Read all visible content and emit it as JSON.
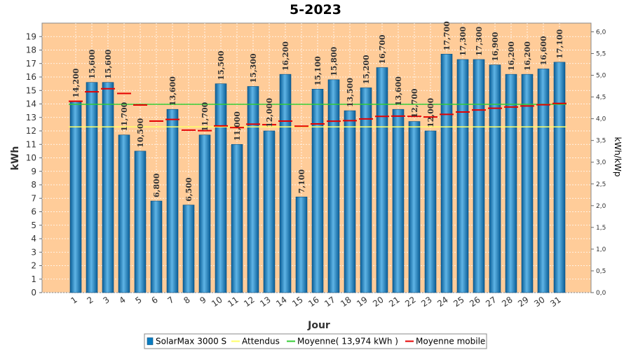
{
  "chart_data": {
    "type": "bar",
    "title": "5-2023",
    "xlabel": "Jour",
    "ylabel": "kWh",
    "y2label": "kWh/kWp",
    "ylim": [
      0,
      20
    ],
    "yticks": [
      0,
      1,
      2,
      3,
      4,
      5,
      6,
      7,
      8,
      9,
      10,
      11,
      12,
      13,
      14,
      15,
      16,
      17,
      18,
      19
    ],
    "y2lim": [
      0,
      6.2
    ],
    "y2ticks": [
      "0,0",
      "0,5",
      "1,0",
      "1,5",
      "2,0",
      "2,5",
      "3,0",
      "3,5",
      "4,0",
      "4,5",
      "5,0",
      "5,5",
      "6,0"
    ],
    "categories": [
      "1",
      "2",
      "3",
      "4",
      "5",
      "6",
      "7",
      "8",
      "9",
      "10",
      "11",
      "12",
      "13",
      "14",
      "15",
      "16",
      "17",
      "18",
      "19",
      "20",
      "21",
      "22",
      "23",
      "24",
      "25",
      "26",
      "27",
      "28",
      "29",
      "30",
      "31"
    ],
    "series": [
      {
        "name": "SolarMax 3000 S",
        "values": [
          14.2,
          15.6,
          15.6,
          11.7,
          10.5,
          6.8,
          13.6,
          6.5,
          11.7,
          15.5,
          11.0,
          15.3,
          12.0,
          16.2,
          7.1,
          15.1,
          15.8,
          13.5,
          15.2,
          16.7,
          13.6,
          12.7,
          12.0,
          17.7,
          17.3,
          17.3,
          16.9,
          16.2,
          16.2,
          16.6,
          17.1
        ],
        "labels": [
          "14,200",
          "15,600",
          "15,600",
          "11,700",
          "10,500",
          "6,800",
          "13,600",
          "6,500",
          "11,700",
          "15,500",
          "11,000",
          "15,300",
          "12,000",
          "16,200",
          "7,100",
          "15,100",
          "15,800",
          "13,500",
          "15,200",
          "16,700",
          "13,600",
          "12,700",
          "12,000",
          "17,700",
          "17,300",
          "17,300",
          "16,900",
          "16,200",
          "16,200",
          "16,600",
          "17,100"
        ]
      },
      {
        "name": "Attendus",
        "value": 12.3
      },
      {
        "name": "Moyenne( 13,974 kWh )",
        "value": 13.974
      },
      {
        "name": "Moyenne mobile",
        "values": [
          14.2,
          14.9,
          15.13,
          14.78,
          13.92,
          12.73,
          12.85,
          12.06,
          12.02,
          12.37,
          12.25,
          12.5,
          12.46,
          12.73,
          12.35,
          12.52,
          12.72,
          12.76,
          12.89,
          13.08,
          13.1,
          13.08,
          13.03,
          13.23,
          13.4,
          13.55,
          13.68,
          13.77,
          13.85,
          13.94,
          14.04
        ]
      }
    ],
    "legend": {
      "placement": "bottom",
      "entries": [
        "SolarMax 3000 S",
        "Attendus",
        "Moyenne( 13,974 kWh )",
        "Moyenne mobile"
      ]
    },
    "colors": {
      "background": "#FFCC99",
      "bar": "#0A7CC0",
      "bar_dark": "#0A5E96",
      "bar_light": "#5FB4E6",
      "attendus": "#FFFF66",
      "moyenne": "#33CC33",
      "moyenne_mobile": "#E50000",
      "grid": "#FFFFFF"
    },
    "grid": true
  }
}
